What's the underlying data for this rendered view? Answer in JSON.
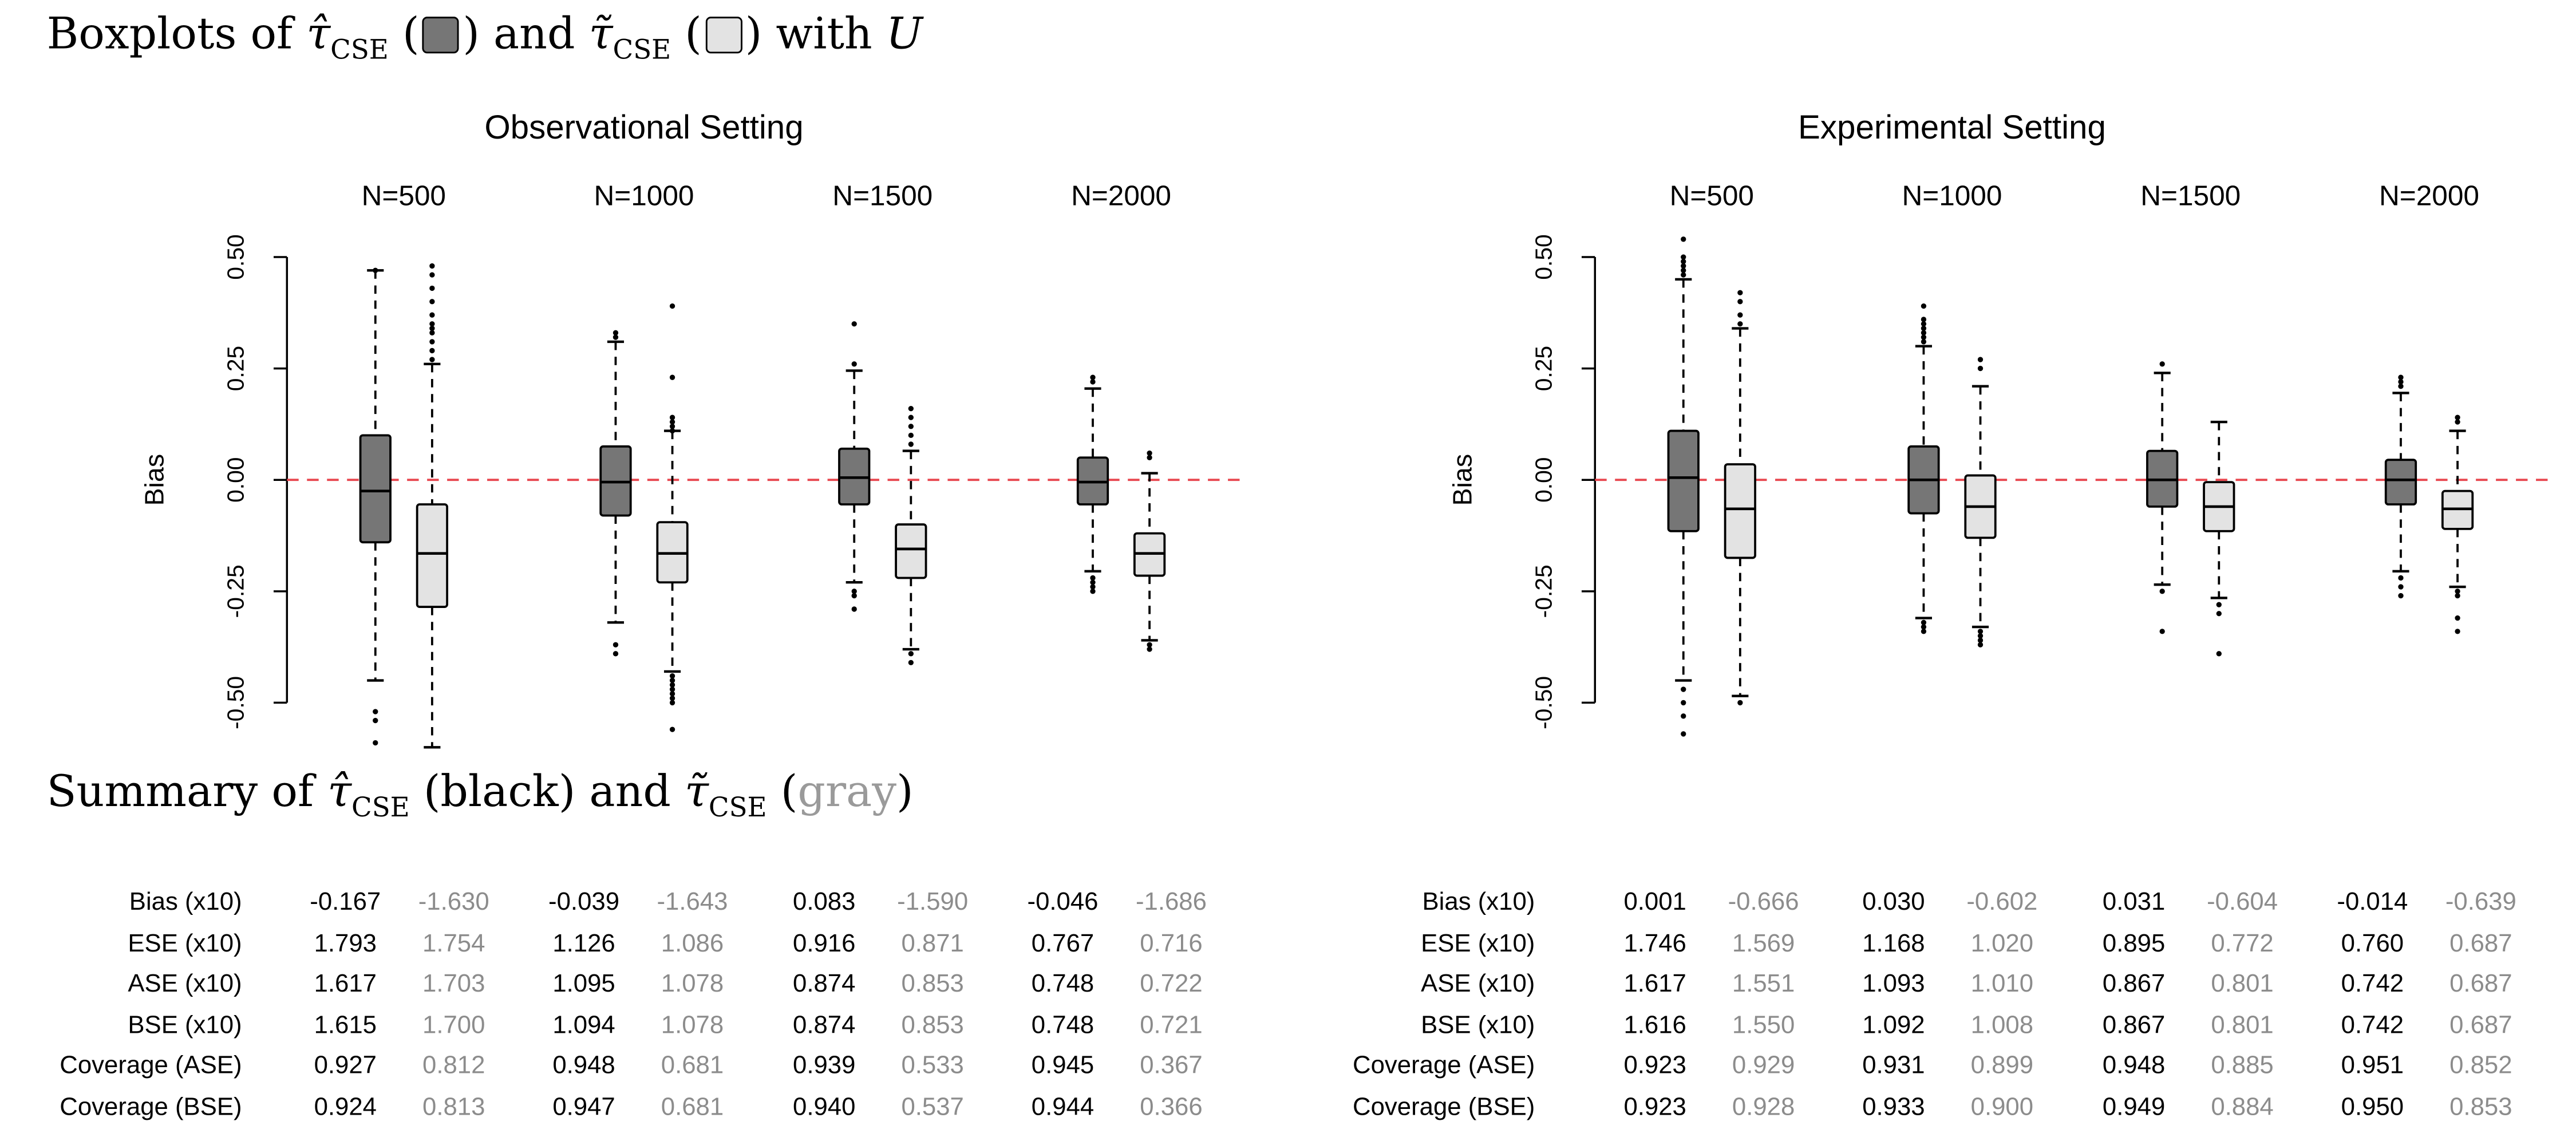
{
  "headings": {
    "boxplots": {
      "prefix": "Boxplots of ",
      "est1": "τ̂",
      "sub": "CSE",
      "mid": " and ",
      "est2": "τ̃",
      "suffix_pre": " with ",
      "suffix_var": "U"
    },
    "summary": {
      "prefix": "Summary of ",
      "est1": "τ̂",
      "sub": "CSE",
      "black_word": "black",
      "mid": " and ",
      "est2": "τ̃",
      "gray_word": "gray"
    }
  },
  "colors": {
    "dark_box": "#767676",
    "light_box": "#e3e3e3",
    "zero_line": "#e8474f",
    "gray_text": "#8c8c8c"
  },
  "chart_data": [
    {
      "type": "boxplot",
      "title": "Observational Setting",
      "ylabel": "Bias",
      "ylim": [
        -0.6,
        0.55
      ],
      "yticks": [
        "0.50",
        "0.25",
        "0.00",
        "-0.25",
        "-0.50"
      ],
      "reference_line": 0.0,
      "groups": [
        "N=500",
        "N=1000",
        "N=1500",
        "N=2000"
      ],
      "boxes": [
        {
          "group": "N=500",
          "estimator": "hat",
          "q1": -0.14,
          "median": -0.025,
          "q3": 0.1,
          "lw": -0.45,
          "uw": 0.47,
          "outliers": [
            0.47,
            -0.52,
            -0.54,
            -0.59
          ]
        },
        {
          "group": "N=500",
          "estimator": "tilde",
          "q1": -0.285,
          "median": -0.165,
          "q3": -0.055,
          "lw": -0.6,
          "uw": 0.26,
          "outliers": [
            0.48,
            0.46,
            0.43,
            0.4,
            0.37,
            0.35,
            0.34,
            0.33,
            0.31,
            0.29,
            0.27
          ]
        },
        {
          "group": "N=1000",
          "estimator": "hat",
          "q1": -0.08,
          "median": -0.005,
          "q3": 0.075,
          "lw": -0.32,
          "uw": 0.31,
          "outliers": [
            0.33,
            0.32,
            -0.37,
            -0.39
          ]
        },
        {
          "group": "N=1000",
          "estimator": "tilde",
          "q1": -0.23,
          "median": -0.165,
          "q3": -0.095,
          "lw": -0.43,
          "uw": 0.11,
          "outliers": [
            0.39,
            0.23,
            0.14,
            0.13,
            0.12,
            0.11,
            -0.44,
            -0.45,
            -0.46,
            -0.47,
            -0.48,
            -0.49,
            -0.5,
            -0.56
          ]
        },
        {
          "group": "N=1500",
          "estimator": "hat",
          "q1": -0.055,
          "median": 0.005,
          "q3": 0.07,
          "lw": -0.23,
          "uw": 0.245,
          "outliers": [
            0.35,
            0.26,
            -0.25,
            -0.26,
            -0.29
          ]
        },
        {
          "group": "N=1500",
          "estimator": "tilde",
          "q1": -0.22,
          "median": -0.155,
          "q3": -0.1,
          "lw": -0.38,
          "uw": 0.065,
          "outliers": [
            0.16,
            0.14,
            0.12,
            0.1,
            0.08,
            -0.39,
            -0.41
          ]
        },
        {
          "group": "N=2000",
          "estimator": "hat",
          "q1": -0.055,
          "median": -0.005,
          "q3": 0.05,
          "lw": -0.205,
          "uw": 0.205,
          "outliers": [
            0.23,
            0.22,
            -0.22,
            -0.23,
            -0.24,
            -0.25
          ]
        },
        {
          "group": "N=2000",
          "estimator": "tilde",
          "q1": -0.215,
          "median": -0.165,
          "q3": -0.12,
          "lw": -0.36,
          "uw": 0.015,
          "outliers": [
            0.06,
            0.05,
            -0.37,
            -0.38
          ]
        }
      ]
    },
    {
      "type": "boxplot",
      "title": "Experimental Setting",
      "ylabel": "Bias",
      "ylim": [
        -0.6,
        0.55
      ],
      "yticks": [
        "0.50",
        "0.25",
        "0.00",
        "-0.25",
        "-0.50"
      ],
      "reference_line": 0.0,
      "groups": [
        "N=500",
        "N=1000",
        "N=1500",
        "N=2000"
      ],
      "boxes": [
        {
          "group": "N=500",
          "estimator": "hat",
          "q1": -0.115,
          "median": 0.005,
          "q3": 0.11,
          "lw": -0.45,
          "uw": 0.45,
          "outliers": [
            0.54,
            0.5,
            0.49,
            0.48,
            0.47,
            0.46,
            -0.47,
            -0.5,
            -0.53,
            -0.57
          ]
        },
        {
          "group": "N=500",
          "estimator": "tilde",
          "q1": -0.175,
          "median": -0.065,
          "q3": 0.035,
          "lw": -0.485,
          "uw": 0.34,
          "outliers": [
            0.42,
            0.4,
            0.37,
            0.35,
            -0.5
          ]
        },
        {
          "group": "N=1000",
          "estimator": "hat",
          "q1": -0.075,
          "median": 0.0,
          "q3": 0.075,
          "lw": -0.31,
          "uw": 0.3,
          "outliers": [
            0.39,
            0.36,
            0.35,
            0.34,
            0.33,
            0.32,
            0.31,
            -0.32,
            -0.33,
            -0.34
          ]
        },
        {
          "group": "N=1000",
          "estimator": "tilde",
          "q1": -0.13,
          "median": -0.06,
          "q3": 0.01,
          "lw": -0.33,
          "uw": 0.21,
          "outliers": [
            0.27,
            0.25,
            -0.34,
            -0.35,
            -0.36,
            -0.37
          ]
        },
        {
          "group": "N=1500",
          "estimator": "hat",
          "q1": -0.06,
          "median": 0.0,
          "q3": 0.065,
          "lw": -0.235,
          "uw": 0.24,
          "outliers": [
            0.26,
            -0.25,
            -0.34
          ]
        },
        {
          "group": "N=1500",
          "estimator": "tilde",
          "q1": -0.115,
          "median": -0.06,
          "q3": -0.005,
          "lw": -0.265,
          "uw": 0.13,
          "outliers": [
            -0.28,
            -0.3,
            -0.39
          ]
        },
        {
          "group": "N=2000",
          "estimator": "hat",
          "q1": -0.055,
          "median": 0.0,
          "q3": 0.045,
          "lw": -0.205,
          "uw": 0.195,
          "outliers": [
            0.23,
            0.22,
            0.21,
            -0.22,
            -0.24,
            -0.26
          ]
        },
        {
          "group": "N=2000",
          "estimator": "tilde",
          "q1": -0.11,
          "median": -0.065,
          "q3": -0.025,
          "lw": -0.24,
          "uw": 0.11,
          "outliers": [
            0.14,
            0.13,
            -0.25,
            -0.26,
            -0.31,
            -0.34
          ]
        }
      ]
    }
  ],
  "tables": [
    {
      "rows": [
        {
          "label": "Bias (x10)",
          "values": [
            "-0.167",
            "-1.630",
            "-0.039",
            "-1.643",
            "0.083",
            "-1.590",
            "-0.046",
            "-1.686"
          ]
        },
        {
          "label": "ESE (x10)",
          "values": [
            "1.793",
            "1.754",
            "1.126",
            "1.086",
            "0.916",
            "0.871",
            "0.767",
            "0.716"
          ]
        },
        {
          "label": "ASE (x10)",
          "values": [
            "1.617",
            "1.703",
            "1.095",
            "1.078",
            "0.874",
            "0.853",
            "0.748",
            "0.722"
          ]
        },
        {
          "label": "BSE (x10)",
          "values": [
            "1.615",
            "1.700",
            "1.094",
            "1.078",
            "0.874",
            "0.853",
            "0.748",
            "0.721"
          ]
        },
        {
          "label": "Coverage (ASE)",
          "values": [
            "0.927",
            "0.812",
            "0.948",
            "0.681",
            "0.939",
            "0.533",
            "0.945",
            "0.367"
          ]
        },
        {
          "label": "Coverage (BSE)",
          "values": [
            "0.924",
            "0.813",
            "0.947",
            "0.681",
            "0.940",
            "0.537",
            "0.944",
            "0.366"
          ]
        }
      ]
    },
    {
      "rows": [
        {
          "label": "Bias (x10)",
          "values": [
            "0.001",
            "-0.666",
            "0.030",
            "-0.602",
            "0.031",
            "-0.604",
            "-0.014",
            "-0.639"
          ]
        },
        {
          "label": "ESE (x10)",
          "values": [
            "1.746",
            "1.569",
            "1.168",
            "1.020",
            "0.895",
            "0.772",
            "0.760",
            "0.687"
          ]
        },
        {
          "label": "ASE (x10)",
          "values": [
            "1.617",
            "1.551",
            "1.093",
            "1.010",
            "0.867",
            "0.801",
            "0.742",
            "0.687"
          ]
        },
        {
          "label": "BSE (x10)",
          "values": [
            "1.616",
            "1.550",
            "1.092",
            "1.008",
            "0.867",
            "0.801",
            "0.742",
            "0.687"
          ]
        },
        {
          "label": "Coverage (ASE)",
          "values": [
            "0.923",
            "0.929",
            "0.931",
            "0.899",
            "0.948",
            "0.885",
            "0.951",
            "0.852"
          ]
        },
        {
          "label": "Coverage (BSE)",
          "values": [
            "0.923",
            "0.928",
            "0.933",
            "0.900",
            "0.949",
            "0.884",
            "0.950",
            "0.853"
          ]
        }
      ]
    }
  ]
}
